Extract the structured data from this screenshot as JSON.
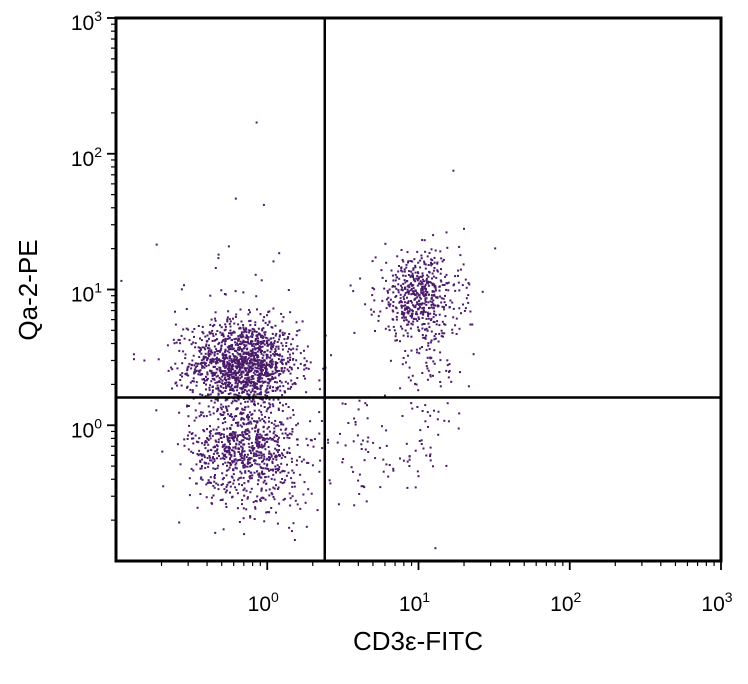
{
  "chart_data": {
    "type": "scatter",
    "title": "",
    "xlabel": "CD3ε-FITC",
    "ylabel": "Qa-2-PE",
    "x_scale": "log",
    "y_scale": "log",
    "xlim": [
      0.1,
      1000
    ],
    "ylim": [
      0.1,
      1000
    ],
    "x_ticks": [
      {
        "base": "10",
        "exp": "0",
        "value": 1
      },
      {
        "base": "10",
        "exp": "1",
        "value": 10
      },
      {
        "base": "10",
        "exp": "2",
        "value": 100
      },
      {
        "base": "10",
        "exp": "3",
        "value": 1000
      }
    ],
    "y_ticks": [
      {
        "base": "10",
        "exp": "0",
        "value": 1
      },
      {
        "base": "10",
        "exp": "1",
        "value": 10
      },
      {
        "base": "10",
        "exp": "2",
        "value": 100
      },
      {
        "base": "10",
        "exp": "3",
        "value": 1000
      }
    ],
    "quadrant_gates": {
      "x": 2.4,
      "y": 1.6
    },
    "point_color": "#4a1a6b",
    "populations": [
      {
        "center": [
          0.7,
          2.8
        ],
        "spread": [
          0.18,
          0.16
        ],
        "count": 1400
      },
      {
        "center": [
          0.7,
          0.7
        ],
        "spread": [
          0.18,
          0.16
        ],
        "count": 700
      },
      {
        "center": [
          0.9,
          0.35
        ],
        "spread": [
          0.2,
          0.15
        ],
        "count": 150
      },
      {
        "center": [
          10,
          9
        ],
        "spread": [
          0.14,
          0.16
        ],
        "count": 520
      },
      {
        "center": [
          12,
          3
        ],
        "spread": [
          0.12,
          0.25
        ],
        "count": 110
      },
      {
        "center": [
          5,
          0.6
        ],
        "spread": [
          0.25,
          0.2
        ],
        "count": 90
      },
      {
        "center": [
          0.5,
          6
        ],
        "spread": [
          0.25,
          0.3
        ],
        "count": 50
      }
    ],
    "outliers": [
      [
        0.85,
        170
      ],
      [
        17,
        75
      ],
      [
        0.95,
        42
      ],
      [
        0.42,
        9
      ],
      [
        20,
        28
      ]
    ]
  }
}
